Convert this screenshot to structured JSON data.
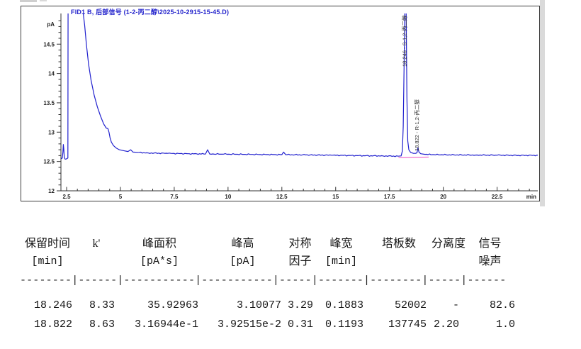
{
  "chart": {
    "title": "FID1 B, 后部信号 (1-2-丙二醇\\2025-10-2915-15-45.D)",
    "y_unit_label": "pA",
    "x_unit_label": "min"
  },
  "chart_data": {
    "type": "line",
    "title": "FID1 B, 后部信号 (1-2-丙二醇\\2025-10-2915-15-45.D)",
    "xlabel": "min",
    "ylabel": "pA",
    "xlim": [
      2.24,
      24.44
    ],
    "ylim": [
      12,
      14.95
    ],
    "grid": false,
    "x_major_ticks": [
      2.5,
      5,
      7.5,
      10,
      12.5,
      15,
      17.5,
      20,
      22.5
    ],
    "x_minor_step": 0.5,
    "y_major_ticks": [
      12,
      12.5,
      13,
      13.5,
      14,
      14.5
    ],
    "y_minor_step": 0.1,
    "series": [
      {
        "name": "FID1 B 信号",
        "color": "#2121ce",
        "points": [
          [
            2.24,
            12.56
          ],
          [
            2.27,
            12.55
          ],
          [
            2.3,
            12.56
          ],
          [
            2.33,
            12.66
          ],
          [
            2.35,
            12.79
          ],
          [
            2.37,
            12.7
          ],
          [
            2.39,
            12.57
          ],
          [
            2.43,
            12.54
          ],
          [
            2.47,
            12.54
          ],
          [
            2.52,
            12.55
          ],
          [
            2.56,
            12.56
          ],
          [
            2.57,
            15.3
          ],
          [
            2.62,
            15.5
          ],
          [
            3.0,
            15.6
          ],
          [
            3.28,
            15.0
          ],
          [
            3.34,
            14.82
          ],
          [
            3.42,
            14.5
          ],
          [
            3.52,
            14.16
          ],
          [
            3.64,
            13.88
          ],
          [
            3.78,
            13.63
          ],
          [
            3.93,
            13.43
          ],
          [
            4.08,
            13.27
          ],
          [
            4.22,
            13.14
          ],
          [
            4.34,
            13.07
          ],
          [
            4.42,
            13.06
          ],
          [
            4.47,
            13.0
          ],
          [
            4.52,
            12.9
          ],
          [
            4.58,
            12.83
          ],
          [
            4.68,
            12.77
          ],
          [
            4.8,
            12.73
          ],
          [
            4.95,
            12.7
          ],
          [
            5.15,
            12.685
          ],
          [
            5.35,
            12.67
          ],
          [
            5.48,
            12.7
          ],
          [
            5.58,
            12.66
          ],
          [
            5.8,
            12.655
          ],
          [
            6.3,
            12.645
          ],
          [
            7.2,
            12.638
          ],
          [
            8.2,
            12.632
          ],
          [
            8.95,
            12.628
          ],
          [
            9.05,
            12.7
          ],
          [
            9.15,
            12.628
          ],
          [
            9.8,
            12.625
          ],
          [
            10.8,
            12.622
          ],
          [
            11.8,
            12.618
          ],
          [
            12.5,
            12.617
          ],
          [
            12.58,
            12.66
          ],
          [
            12.68,
            12.616
          ],
          [
            13.6,
            12.612
          ],
          [
            14.8,
            12.607
          ],
          [
            16.0,
            12.6
          ],
          [
            17.2,
            12.595
          ],
          [
            17.9,
            12.59
          ],
          [
            18.04,
            12.595
          ],
          [
            18.1,
            12.68
          ],
          [
            18.14,
            13.1
          ],
          [
            18.18,
            14.2
          ],
          [
            18.22,
            15.3
          ],
          [
            18.246,
            15.66
          ],
          [
            18.27,
            15.2
          ],
          [
            18.31,
            13.6
          ],
          [
            18.35,
            12.85
          ],
          [
            18.4,
            12.7
          ],
          [
            18.48,
            12.655
          ],
          [
            18.6,
            12.64
          ],
          [
            18.72,
            12.638
          ],
          [
            18.78,
            12.65
          ],
          [
            18.822,
            12.735
          ],
          [
            18.87,
            12.66
          ],
          [
            18.95,
            12.632
          ],
          [
            19.15,
            12.622
          ],
          [
            19.5,
            12.617
          ],
          [
            20.5,
            12.612
          ],
          [
            21.5,
            12.61
          ],
          [
            22.5,
            12.607
          ],
          [
            23.5,
            12.604
          ],
          [
            24.42,
            12.605
          ]
        ]
      }
    ],
    "integration_baseline": {
      "color": "#ee5fc8",
      "x1": 17.92,
      "y1": 12.565,
      "x2": 19.32,
      "y2": 12.575
    },
    "peak_labels": [
      {
        "time": 18.246,
        "text": "18.246 - S-1,2-丙二醇"
      },
      {
        "time": 18.822,
        "text": "18.822 - R-1,2-丙二醇"
      }
    ]
  },
  "results_table": {
    "header_row1": [
      "保留时间",
      "k'",
      "峰面积",
      "峰高",
      "对称",
      "峰宽",
      "塔板数",
      "分离度",
      "信号"
    ],
    "header_row2": [
      "[min]",
      "",
      "[pA*s]",
      "[pA]",
      "因子",
      "[min]",
      "",
      "",
      "噪声"
    ],
    "separator": "--------|------|-----------|-----------|-----|-------|--------|-----|------",
    "rows": [
      [
        "18.246",
        "8.33",
        "35.92963",
        "3.10077",
        "3.29",
        "0.1883",
        "52002",
        "-",
        "82.6"
      ],
      [
        "18.822",
        "8.63",
        "3.16944e-1",
        "3.92515e-2",
        "0.31",
        "0.1193",
        "137745",
        "2.20",
        "1.0"
      ]
    ]
  }
}
